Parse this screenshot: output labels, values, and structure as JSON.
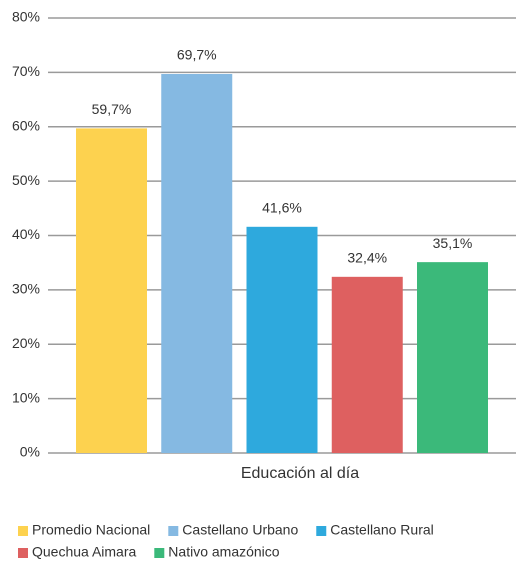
{
  "chart_data": {
    "type": "bar",
    "categories": [
      "Educación al día"
    ],
    "series": [
      {
        "name": "Promedio Nacional",
        "color": "#fdd24f",
        "values": [
          59.7
        ],
        "value_labels": [
          "59,7%"
        ]
      },
      {
        "name": "Castellano Urbano",
        "color": "#85b9e2",
        "values": [
          69.7
        ],
        "value_labels": [
          "69,7%"
        ]
      },
      {
        "name": "Castellano Rural",
        "color": "#2ea9dd",
        "values": [
          41.6
        ],
        "value_labels": [
          "41,6%"
        ]
      },
      {
        "name": "Quechua Aimara",
        "color": "#de6060",
        "values": [
          32.4
        ],
        "value_labels": [
          "32,4%"
        ]
      },
      {
        "name": "Nativo amazónico",
        "color": "#3bb97a",
        "values": [
          35.1
        ],
        "value_labels": [
          "35,1%"
        ]
      }
    ],
    "ylim": [
      0,
      80
    ],
    "yticks": [
      {
        "value": 0,
        "label": "0%"
      },
      {
        "value": 10,
        "label": "10%"
      },
      {
        "value": 20,
        "label": "20%"
      },
      {
        "value": 30,
        "label": "30%"
      },
      {
        "value": 40,
        "label": "40%"
      },
      {
        "value": 50,
        "label": "50%"
      },
      {
        "value": 60,
        "label": "60%"
      },
      {
        "value": 70,
        "label": "70%"
      },
      {
        "value": 80,
        "label": "80%"
      }
    ],
    "grid": true
  }
}
